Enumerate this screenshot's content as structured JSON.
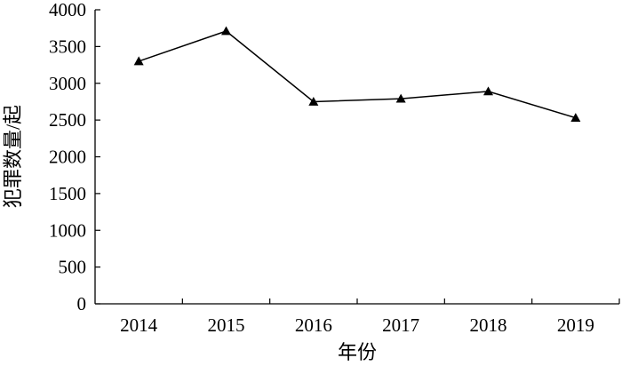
{
  "chart_data": {
    "type": "line",
    "title": "",
    "xlabel": "年份",
    "ylabel": "犯罪数量/起",
    "categories": [
      "2014",
      "2015",
      "2016",
      "2017",
      "2018",
      "2019"
    ],
    "series": [
      {
        "values": [
          3300,
          3710,
          2750,
          2790,
          2890,
          2530
        ]
      }
    ],
    "ylim": [
      0,
      4000
    ],
    "yticks": [
      0,
      500,
      1000,
      1500,
      2000,
      2500,
      3000,
      3500,
      4000
    ],
    "ytick_labels": [
      "0",
      "500",
      "1000",
      "1500",
      "2000",
      "2500",
      "3000",
      "3500",
      "4000"
    ],
    "marker": "triangle",
    "line_color": "#000000",
    "grid": false,
    "legend": "none"
  }
}
